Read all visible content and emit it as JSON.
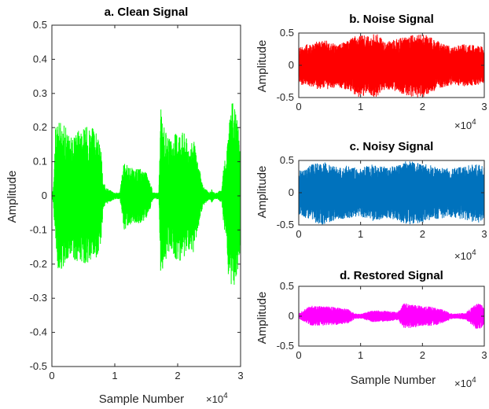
{
  "chart_data": [
    {
      "panel": "a",
      "type": "line",
      "title": "a.  Clean Signal",
      "xlabel": "Sample Number",
      "ylabel": "Amplitude",
      "x_scale_note": "×10",
      "x_scale_exp": "4",
      "xlim": [
        0,
        30000
      ],
      "ylim": [
        -0.5,
        0.5
      ],
      "xticks": [
        0,
        10000,
        20000,
        30000
      ],
      "xtick_labels": [
        "0",
        "1",
        "2",
        "3"
      ],
      "yticks": [
        -0.5,
        -0.4,
        -0.3,
        -0.2,
        -0.1,
        0,
        0.1,
        0.2,
        0.3,
        0.4,
        0.5
      ],
      "ytick_labels": [
        "-0.5",
        "-0.4",
        "-0.3",
        "-0.2",
        "-0.1",
        "0",
        "0.1",
        "0.2",
        "0.3",
        "0.4",
        "0.5"
      ],
      "color": "#00ff00",
      "envelope": {
        "x": [
          0,
          200,
          600,
          1000,
          2000,
          3000,
          4000,
          5000,
          6000,
          7000,
          7900,
          8100,
          9000,
          10000,
          10800,
          11200,
          11500,
          12000,
          13000,
          14000,
          15000,
          15800,
          16100,
          16600,
          17000,
          17300,
          17500,
          18000,
          19000,
          20000,
          21000,
          22000,
          22500,
          23000,
          24000,
          25000,
          25400,
          25800,
          26300,
          27000,
          27300,
          27700,
          28000,
          28700,
          29000,
          29500,
          30000
        ],
        "pos": [
          0.01,
          0.02,
          0.21,
          0.22,
          0.21,
          0.17,
          0.2,
          0.2,
          0.21,
          0.19,
          0.13,
          0.04,
          0.02,
          0.01,
          0.01,
          0.07,
          0.1,
          0.09,
          0.08,
          0.08,
          0.07,
          0.03,
          0.01,
          0.01,
          0.01,
          0.26,
          0.23,
          0.19,
          0.16,
          0.2,
          0.19,
          0.15,
          0.17,
          0.12,
          0.03,
          0.01,
          0.02,
          0.01,
          0.01,
          0.02,
          0.09,
          0.12,
          0.19,
          0.28,
          0.27,
          0.22,
          0.15
        ],
        "neg": [
          -0.01,
          -0.02,
          -0.16,
          -0.22,
          -0.21,
          -0.17,
          -0.2,
          -0.2,
          -0.21,
          -0.19,
          -0.13,
          -0.04,
          -0.02,
          -0.01,
          -0.01,
          -0.07,
          -0.1,
          -0.09,
          -0.08,
          -0.08,
          -0.07,
          -0.03,
          -0.01,
          -0.01,
          -0.01,
          -0.25,
          -0.23,
          -0.19,
          -0.16,
          -0.2,
          -0.19,
          -0.15,
          -0.17,
          -0.12,
          -0.03,
          -0.01,
          -0.02,
          -0.01,
          -0.01,
          -0.02,
          -0.09,
          -0.12,
          -0.23,
          -0.28,
          -0.26,
          -0.22,
          -0.15
        ]
      }
    },
    {
      "panel": "b",
      "type": "line",
      "title": "b.  Noise Signal",
      "xlabel": "",
      "ylabel": "Amplitude",
      "x_scale_note": "×10",
      "x_scale_exp": "4",
      "xlim": [
        0,
        30000
      ],
      "ylim": [
        -0.5,
        0.5
      ],
      "xticks": [
        0,
        10000,
        20000,
        30000
      ],
      "xtick_labels": [
        "0",
        "1",
        "2",
        "3"
      ],
      "yticks": [
        -0.5,
        0,
        0.5
      ],
      "ytick_labels": [
        "-0.5",
        "0",
        "0.5"
      ],
      "color": "#ff0000",
      "envelope": {
        "x": [
          0,
          2000,
          4000,
          6000,
          8000,
          9500,
          11000,
          12500,
          14000,
          15500,
          17000,
          18500,
          20000,
          21500,
          23000,
          25000,
          27000,
          29000,
          30000
        ],
        "pos": [
          0.3,
          0.35,
          0.4,
          0.33,
          0.38,
          0.5,
          0.45,
          0.5,
          0.36,
          0.4,
          0.44,
          0.48,
          0.5,
          0.43,
          0.36,
          0.3,
          0.34,
          0.31,
          0.28
        ],
        "neg": [
          -0.3,
          -0.34,
          -0.4,
          -0.35,
          -0.38,
          -0.5,
          -0.46,
          -0.5,
          -0.37,
          -0.4,
          -0.45,
          -0.5,
          -0.5,
          -0.42,
          -0.35,
          -0.3,
          -0.33,
          -0.3,
          -0.28
        ]
      }
    },
    {
      "panel": "c",
      "type": "line",
      "title": "c.  Noisy Signal",
      "xlabel": "",
      "ylabel": "Amplitude",
      "x_scale_note": "×10",
      "x_scale_exp": "4",
      "xlim": [
        0,
        30000
      ],
      "ylim": [
        -0.5,
        0.5
      ],
      "xticks": [
        0,
        10000,
        20000,
        30000
      ],
      "xtick_labels": [
        "0",
        "1",
        "2",
        "3"
      ],
      "yticks": [
        -0.5,
        0,
        0.5
      ],
      "ytick_labels": [
        "-0.5",
        "0",
        "0.5"
      ],
      "color": "#0072bd",
      "envelope": {
        "x": [
          0,
          2000,
          4000,
          6000,
          8000,
          10000,
          12000,
          14000,
          16000,
          17500,
          19000,
          21000,
          23000,
          25000,
          27000,
          29000,
          30000
        ],
        "pos": [
          0.34,
          0.44,
          0.48,
          0.4,
          0.42,
          0.38,
          0.45,
          0.4,
          0.42,
          0.5,
          0.47,
          0.44,
          0.4,
          0.38,
          0.42,
          0.45,
          0.4
        ],
        "neg": [
          -0.34,
          -0.45,
          -0.5,
          -0.42,
          -0.4,
          -0.38,
          -0.44,
          -0.4,
          -0.44,
          -0.5,
          -0.48,
          -0.44,
          -0.4,
          -0.38,
          -0.43,
          -0.47,
          -0.4
        ]
      }
    },
    {
      "panel": "d",
      "type": "line",
      "title": "d.  Restored Signal",
      "xlabel": "Sample Number",
      "ylabel": "Amplitude",
      "x_scale_note": "×10",
      "x_scale_exp": "4",
      "xlim": [
        0,
        30000
      ],
      "ylim": [
        -0.5,
        0.5
      ],
      "xticks": [
        0,
        10000,
        20000,
        30000
      ],
      "xtick_labels": [
        "0",
        "1",
        "2",
        "3"
      ],
      "yticks": [
        -0.5,
        0,
        0.5
      ],
      "ytick_labels": [
        "-0.5",
        "0",
        "0.5"
      ],
      "color": "#ff00ff",
      "envelope": {
        "x": [
          0,
          1000,
          2000,
          4000,
          6000,
          8000,
          9000,
          10000,
          11000,
          12000,
          14000,
          16000,
          17000,
          18000,
          20000,
          22000,
          23500,
          25000,
          27000,
          28000,
          28800,
          29500,
          30000
        ],
        "pos": [
          0.05,
          0.12,
          0.19,
          0.17,
          0.15,
          0.12,
          0.05,
          0.04,
          0.07,
          0.1,
          0.09,
          0.07,
          0.22,
          0.2,
          0.17,
          0.16,
          0.1,
          0.04,
          0.06,
          0.15,
          0.22,
          0.2,
          0.12
        ],
        "neg": [
          -0.05,
          -0.1,
          -0.16,
          -0.16,
          -0.15,
          -0.12,
          -0.05,
          -0.04,
          -0.07,
          -0.1,
          -0.09,
          -0.07,
          -0.2,
          -0.2,
          -0.17,
          -0.16,
          -0.1,
          -0.04,
          -0.06,
          -0.15,
          -0.23,
          -0.2,
          -0.12
        ]
      }
    }
  ]
}
